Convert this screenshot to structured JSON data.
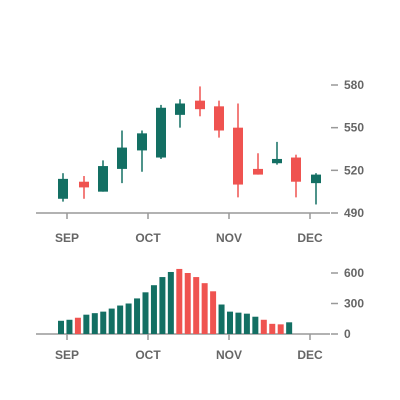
{
  "colors": {
    "up": "#136f63",
    "down": "#ef5350",
    "axis": "#999999",
    "text": "#666666"
  },
  "chart_data": [
    {
      "type": "candlestick",
      "x_ticks": [
        "SEP",
        "OCT",
        "NOV",
        "DEC"
      ],
      "y_ticks": [
        490,
        520,
        550,
        580
      ],
      "ylim": [
        490,
        585
      ],
      "candles": [
        {
          "open": 500,
          "close": 514,
          "high": 518,
          "low": 498
        },
        {
          "open": 512,
          "close": 508,
          "high": 516,
          "low": 500
        },
        {
          "open": 505,
          "close": 523,
          "high": 527,
          "low": 505
        },
        {
          "open": 521,
          "close": 536,
          "high": 548,
          "low": 511
        },
        {
          "open": 534,
          "close": 546,
          "high": 548,
          "low": 519
        },
        {
          "open": 529,
          "close": 564,
          "high": 566,
          "low": 528
        },
        {
          "open": 559,
          "close": 567,
          "high": 570,
          "low": 550
        },
        {
          "open": 569,
          "close": 563,
          "high": 579,
          "low": 558
        },
        {
          "open": 565,
          "close": 548,
          "high": 569,
          "low": 543
        },
        {
          "open": 550,
          "close": 510,
          "high": 567,
          "low": 501
        },
        {
          "open": 521,
          "close": 517,
          "high": 532,
          "low": 517
        },
        {
          "open": 525,
          "close": 528,
          "high": 540,
          "low": 524
        },
        {
          "open": 529,
          "close": 512,
          "high": 531,
          "low": 501
        },
        {
          "open": 511,
          "close": 517,
          "high": 518,
          "low": 496
        }
      ]
    },
    {
      "type": "bar",
      "x_ticks": [
        "SEP",
        "OCT",
        "NOV",
        "DEC"
      ],
      "y_ticks": [
        0,
        300,
        600
      ],
      "ylim": [
        0,
        620
      ],
      "values": [
        130,
        140,
        160,
        190,
        205,
        220,
        250,
        280,
        300,
        350,
        410,
        480,
        560,
        610,
        640,
        600,
        560,
        500,
        420,
        290,
        220,
        210,
        200,
        170,
        140,
        100,
        95,
        115
      ],
      "colors": [
        "up",
        "up",
        "down",
        "up",
        "up",
        "up",
        "up",
        "up",
        "up",
        "up",
        "up",
        "up",
        "up",
        "up",
        "down",
        "down",
        "down",
        "down",
        "down",
        "up",
        "up",
        "up",
        "up",
        "up",
        "down",
        "down",
        "down",
        "up"
      ]
    }
  ]
}
